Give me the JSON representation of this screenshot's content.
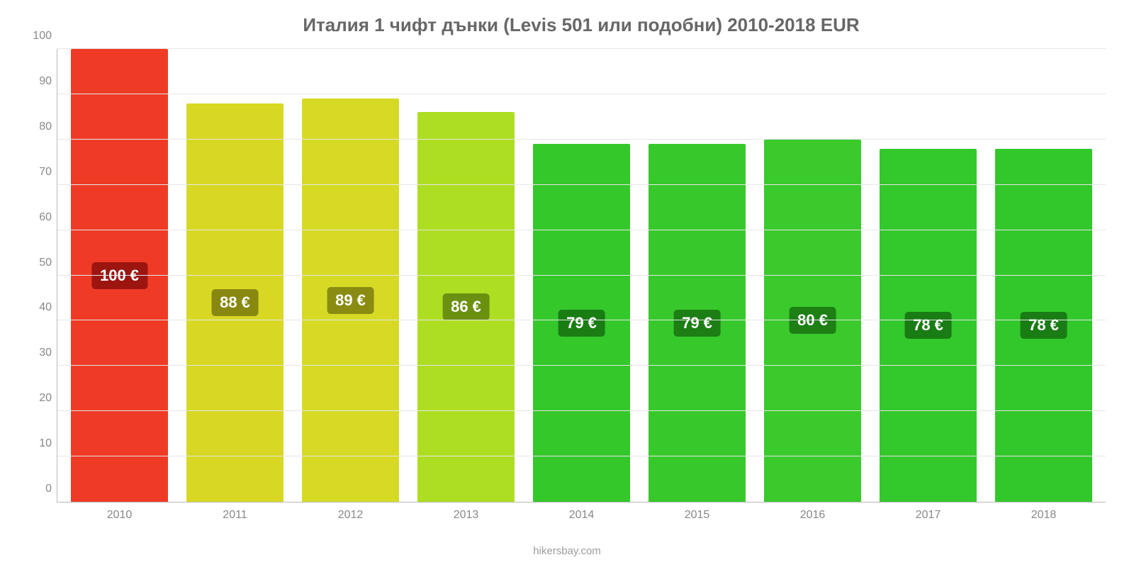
{
  "chart": {
    "type": "bar",
    "title": "Италия 1 чифт дънки (Levis 501 или подобни) 2010-2018 EUR",
    "title_fontsize": 26,
    "title_color": "#676767",
    "background_color": "#ffffff",
    "grid_color": "#e6e6e6",
    "axis_color": "#b9b9b9",
    "tick_color": "#888888",
    "tick_fontsize": 16,
    "ylim": [
      0,
      100
    ],
    "ytick_step": 10,
    "y_ticks": [
      "0",
      "10",
      "20",
      "30",
      "40",
      "50",
      "60",
      "70",
      "80",
      "90",
      "100"
    ],
    "bar_width_pct": 84,
    "bars": [
      {
        "category": "2010",
        "value": 100,
        "label": "100 €",
        "fill": "#ef3b26",
        "label_bg": "#9c1511"
      },
      {
        "category": "2011",
        "value": 88,
        "label": "88 €",
        "fill": "#d8d824",
        "label_bg": "#888810"
      },
      {
        "category": "2012",
        "value": 89,
        "label": "89 €",
        "fill": "#d6da25",
        "label_bg": "#898c11"
      },
      {
        "category": "2013",
        "value": 86,
        "label": "86 €",
        "fill": "#aede22",
        "label_bg": "#6b9010"
      },
      {
        "category": "2014",
        "value": 79,
        "label": "79 €",
        "fill": "#34c82b",
        "label_bg": "#1a7d14"
      },
      {
        "category": "2015",
        "value": 79,
        "label": "79 €",
        "fill": "#37c92b",
        "label_bg": "#1c7e14"
      },
      {
        "category": "2016",
        "value": 80,
        "label": "80 €",
        "fill": "#3aca2c",
        "label_bg": "#1e7f15"
      },
      {
        "category": "2017",
        "value": 78,
        "label": "78 €",
        "fill": "#33c82b",
        "label_bg": "#197c14"
      },
      {
        "category": "2018",
        "value": 78,
        "label": "78 €",
        "fill": "#32c82b",
        "label_bg": "#197c14"
      }
    ],
    "credit": "hikersbay.com",
    "label_fontsize": 22,
    "label_text_color": "#ffffff"
  }
}
